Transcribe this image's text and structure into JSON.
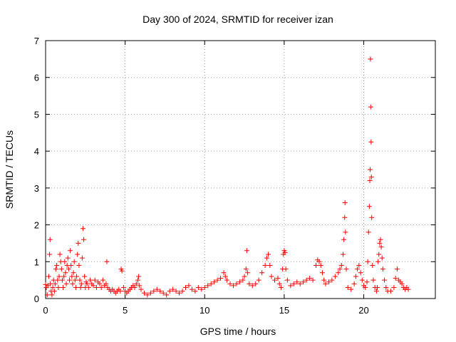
{
  "chart_data": {
    "type": "scatter",
    "title": "Day 300 of 2024, SRMTID for receiver izan",
    "xlabel": "GPS time / hours",
    "ylabel": "SRMTID / TECUs",
    "xlim": [
      0,
      24.5
    ],
    "ylim": [
      0,
      7
    ],
    "grid": true,
    "marker": "+",
    "color": "#ff0000",
    "x_ticks": [
      {
        "value": 0,
        "label": "0"
      },
      {
        "value": 5,
        "label": "5"
      },
      {
        "value": 10,
        "label": "10"
      },
      {
        "value": 15,
        "label": "15"
      },
      {
        "value": 20,
        "label": "20"
      }
    ],
    "y_ticks": [
      {
        "value": 0,
        "label": "0"
      },
      {
        "value": 1,
        "label": "1"
      },
      {
        "value": 2,
        "label": "2"
      },
      {
        "value": 3,
        "label": "3"
      },
      {
        "value": 4,
        "label": "4"
      },
      {
        "value": 5,
        "label": "5"
      },
      {
        "value": 6,
        "label": "6"
      },
      {
        "value": 7,
        "label": "7"
      }
    ],
    "series": [
      {
        "name": "SRMTID",
        "points": [
          [
            0.0,
            0.38
          ],
          [
            0.05,
            0.3
          ],
          [
            0.1,
            0.1
          ],
          [
            0.15,
            0.35
          ],
          [
            0.2,
            0.6
          ],
          [
            0.25,
            1.2
          ],
          [
            0.28,
            1.6
          ],
          [
            0.3,
            0.4
          ],
          [
            0.35,
            0.2
          ],
          [
            0.4,
            0.1
          ],
          [
            0.45,
            0.3
          ],
          [
            0.5,
            0.5
          ],
          [
            0.55,
            0.2
          ],
          [
            0.6,
            0.4
          ],
          [
            0.65,
            0.8
          ],
          [
            0.7,
            0.9
          ],
          [
            0.75,
            0.5
          ],
          [
            0.8,
            0.3
          ],
          [
            0.85,
            0.6
          ],
          [
            0.9,
            1.2
          ],
          [
            0.95,
            1.0
          ],
          [
            1.0,
            0.8
          ],
          [
            1.05,
            0.5
          ],
          [
            1.1,
            0.3
          ],
          [
            1.15,
            0.6
          ],
          [
            1.2,
            1.0
          ],
          [
            1.25,
            0.7
          ],
          [
            1.3,
            0.4
          ],
          [
            1.35,
            0.9
          ],
          [
            1.4,
            1.1
          ],
          [
            1.45,
            0.8
          ],
          [
            1.5,
            0.5
          ],
          [
            1.55,
            1.3
          ],
          [
            1.6,
            0.9
          ],
          [
            1.65,
            0.6
          ],
          [
            1.7,
            0.4
          ],
          [
            1.75,
            0.7
          ],
          [
            1.8,
            1.0
          ],
          [
            1.85,
            0.5
          ],
          [
            1.9,
            0.3
          ],
          [
            1.95,
            0.6
          ],
          [
            2.0,
            1.2
          ],
          [
            2.05,
            1.5
          ],
          [
            2.1,
            0.9
          ],
          [
            2.15,
            0.5
          ],
          [
            2.2,
            0.3
          ],
          [
            2.25,
            0.4
          ],
          [
            2.3,
            1.1
          ],
          [
            2.35,
            1.9
          ],
          [
            2.4,
            1.6
          ],
          [
            2.45,
            0.6
          ],
          [
            2.5,
            0.3
          ],
          [
            2.55,
            0.45
          ],
          [
            2.6,
            0.4
          ],
          [
            2.7,
            0.3
          ],
          [
            2.8,
            0.5
          ],
          [
            2.9,
            0.4
          ],
          [
            3.0,
            0.35
          ],
          [
            3.1,
            0.5
          ],
          [
            3.2,
            0.3
          ],
          [
            3.3,
            0.45
          ],
          [
            3.4,
            0.4
          ],
          [
            3.5,
            0.3
          ],
          [
            3.6,
            0.5
          ],
          [
            3.7,
            0.35
          ],
          [
            3.8,
            0.4
          ],
          [
            3.85,
            1.0
          ],
          [
            3.9,
            0.3
          ],
          [
            4.0,
            0.25
          ],
          [
            4.1,
            0.2
          ],
          [
            4.2,
            0.25
          ],
          [
            4.3,
            0.2
          ],
          [
            4.4,
            0.15
          ],
          [
            4.5,
            0.2
          ],
          [
            4.6,
            0.25
          ],
          [
            4.7,
            0.2
          ],
          [
            4.75,
            0.8
          ],
          [
            4.8,
            0.75
          ],
          [
            4.9,
            0.3
          ],
          [
            5.0,
            0.2
          ],
          [
            5.1,
            0.15
          ],
          [
            5.2,
            0.2
          ],
          [
            5.3,
            0.25
          ],
          [
            5.4,
            0.3
          ],
          [
            5.5,
            0.35
          ],
          [
            5.6,
            0.3
          ],
          [
            5.7,
            0.4
          ],
          [
            5.8,
            0.5
          ],
          [
            5.85,
            0.6
          ],
          [
            5.9,
            0.35
          ],
          [
            6.0,
            0.25
          ],
          [
            6.2,
            0.15
          ],
          [
            6.4,
            0.1
          ],
          [
            6.6,
            0.15
          ],
          [
            6.8,
            0.2
          ],
          [
            7.0,
            0.25
          ],
          [
            7.2,
            0.2
          ],
          [
            7.4,
            0.15
          ],
          [
            7.6,
            0.1
          ],
          [
            7.8,
            0.2
          ],
          [
            8.0,
            0.25
          ],
          [
            8.2,
            0.2
          ],
          [
            8.4,
            0.15
          ],
          [
            8.6,
            0.2
          ],
          [
            8.8,
            0.3
          ],
          [
            9.0,
            0.35
          ],
          [
            9.2,
            0.25
          ],
          [
            9.4,
            0.2
          ],
          [
            9.6,
            0.3
          ],
          [
            9.8,
            0.25
          ],
          [
            10.0,
            0.3
          ],
          [
            10.2,
            0.35
          ],
          [
            10.4,
            0.4
          ],
          [
            10.6,
            0.45
          ],
          [
            10.8,
            0.5
          ],
          [
            11.0,
            0.55
          ],
          [
            11.2,
            0.7
          ],
          [
            11.3,
            0.6
          ],
          [
            11.4,
            0.5
          ],
          [
            11.6,
            0.4
          ],
          [
            11.8,
            0.35
          ],
          [
            12.0,
            0.4
          ],
          [
            12.2,
            0.45
          ],
          [
            12.4,
            0.5
          ],
          [
            12.5,
            0.6
          ],
          [
            12.6,
            0.8
          ],
          [
            12.65,
            1.3
          ],
          [
            12.7,
            0.7
          ],
          [
            12.8,
            0.4
          ],
          [
            13.0,
            0.35
          ],
          [
            13.2,
            0.4
          ],
          [
            13.4,
            0.5
          ],
          [
            13.6,
            0.7
          ],
          [
            13.8,
            0.9
          ],
          [
            13.9,
            1.1
          ],
          [
            14.0,
            1.2
          ],
          [
            14.1,
            0.9
          ],
          [
            14.2,
            0.6
          ],
          [
            14.4,
            0.5
          ],
          [
            14.6,
            0.55
          ],
          [
            14.7,
            0.4
          ],
          [
            14.8,
            0.3
          ],
          [
            14.9,
            0.8
          ],
          [
            14.95,
            1.2
          ],
          [
            15.0,
            1.3
          ],
          [
            15.05,
            1.25
          ],
          [
            15.1,
            0.8
          ],
          [
            15.2,
            0.5
          ],
          [
            15.4,
            0.35
          ],
          [
            15.6,
            0.4
          ],
          [
            15.8,
            0.45
          ],
          [
            16.0,
            0.4
          ],
          [
            16.2,
            0.45
          ],
          [
            16.4,
            0.5
          ],
          [
            16.6,
            0.55
          ],
          [
            16.8,
            0.5
          ],
          [
            17.0,
            0.9
          ],
          [
            17.1,
            1.05
          ],
          [
            17.2,
            1.0
          ],
          [
            17.3,
            0.9
          ],
          [
            17.4,
            0.7
          ],
          [
            17.5,
            0.5
          ],
          [
            17.6,
            0.4
          ],
          [
            17.8,
            0.45
          ],
          [
            18.0,
            0.5
          ],
          [
            18.2,
            0.6
          ],
          [
            18.4,
            0.7
          ],
          [
            18.5,
            0.8
          ],
          [
            18.6,
            0.9
          ],
          [
            18.7,
            1.2
          ],
          [
            18.75,
            1.6
          ],
          [
            18.8,
            2.2
          ],
          [
            18.82,
            2.6
          ],
          [
            18.85,
            1.8
          ],
          [
            18.9,
            0.8
          ],
          [
            19.0,
            0.3
          ],
          [
            19.2,
            0.25
          ],
          [
            19.4,
            0.4
          ],
          [
            19.5,
            0.6
          ],
          [
            19.6,
            0.8
          ],
          [
            19.7,
            0.9
          ],
          [
            19.8,
            0.7
          ],
          [
            19.9,
            0.5
          ],
          [
            20.0,
            0.35
          ],
          [
            20.1,
            0.3
          ],
          [
            20.2,
            0.45
          ],
          [
            20.25,
            1.0
          ],
          [
            20.3,
            1.8
          ],
          [
            20.35,
            2.5
          ],
          [
            20.38,
            3.2
          ],
          [
            20.4,
            3.5
          ],
          [
            20.42,
            6.5
          ],
          [
            20.44,
            5.2
          ],
          [
            20.46,
            4.25
          ],
          [
            20.48,
            3.3
          ],
          [
            20.5,
            2.2
          ],
          [
            20.55,
            0.9
          ],
          [
            20.6,
            0.5
          ],
          [
            20.7,
            0.3
          ],
          [
            20.8,
            0.2
          ],
          [
            20.85,
            0.3
          ],
          [
            20.9,
            1.0
          ],
          [
            20.95,
            1.2
          ],
          [
            21.0,
            1.5
          ],
          [
            21.05,
            1.6
          ],
          [
            21.1,
            1.4
          ],
          [
            21.15,
            1.1
          ],
          [
            21.2,
            0.8
          ],
          [
            21.3,
            0.5
          ],
          [
            21.4,
            0.3
          ],
          [
            21.5,
            0.2
          ],
          [
            21.7,
            0.2
          ],
          [
            21.9,
            0.3
          ],
          [
            22.0,
            0.55
          ],
          [
            22.1,
            0.8
          ],
          [
            22.2,
            0.5
          ],
          [
            22.3,
            0.45
          ],
          [
            22.4,
            0.4
          ],
          [
            22.5,
            0.3
          ],
          [
            22.6,
            0.25
          ],
          [
            22.7,
            0.3
          ],
          [
            22.8,
            0.25
          ]
        ]
      }
    ]
  }
}
